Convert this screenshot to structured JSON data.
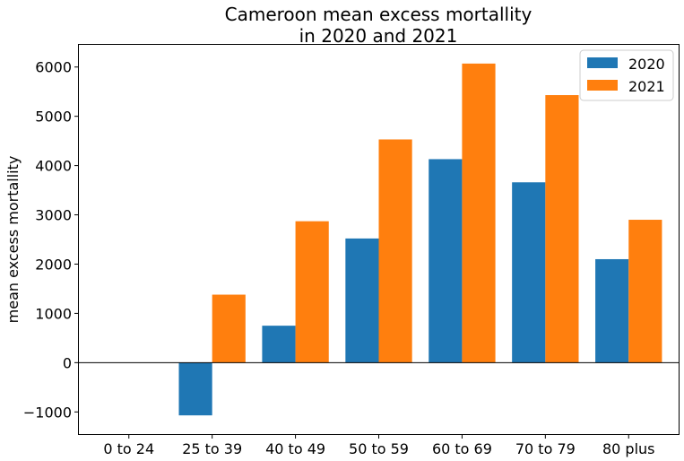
{
  "chart_data": {
    "type": "bar",
    "title_lines": [
      "Cameroon mean excess mortallity",
      "in 2020 and 2021"
    ],
    "xlabel": "",
    "ylabel": "mean excess mortallity",
    "categories": [
      "0 to 24",
      "25 to 39",
      "40 to 49",
      "50 to 59",
      "60 to 69",
      "70 to 79",
      "80 plus"
    ],
    "series": [
      {
        "name": "2020",
        "color": "#1f77b4",
        "values": [
          0,
          -1070,
          750,
          2520,
          4130,
          3660,
          2100
        ]
      },
      {
        "name": "2021",
        "color": "#ff7f0e",
        "values": [
          0,
          1380,
          2870,
          4530,
          6070,
          5430,
          2900
        ]
      }
    ],
    "ylim": [
      -1450,
      6450
    ],
    "yticks": [
      -1000,
      0,
      1000,
      2000,
      3000,
      4000,
      5000,
      6000
    ],
    "ytick_labels": [
      "−1000",
      "0",
      "1000",
      "2000",
      "3000",
      "4000",
      "5000",
      "6000"
    ],
    "zero_line": true,
    "grid": false,
    "legend_position": "top-right"
  }
}
